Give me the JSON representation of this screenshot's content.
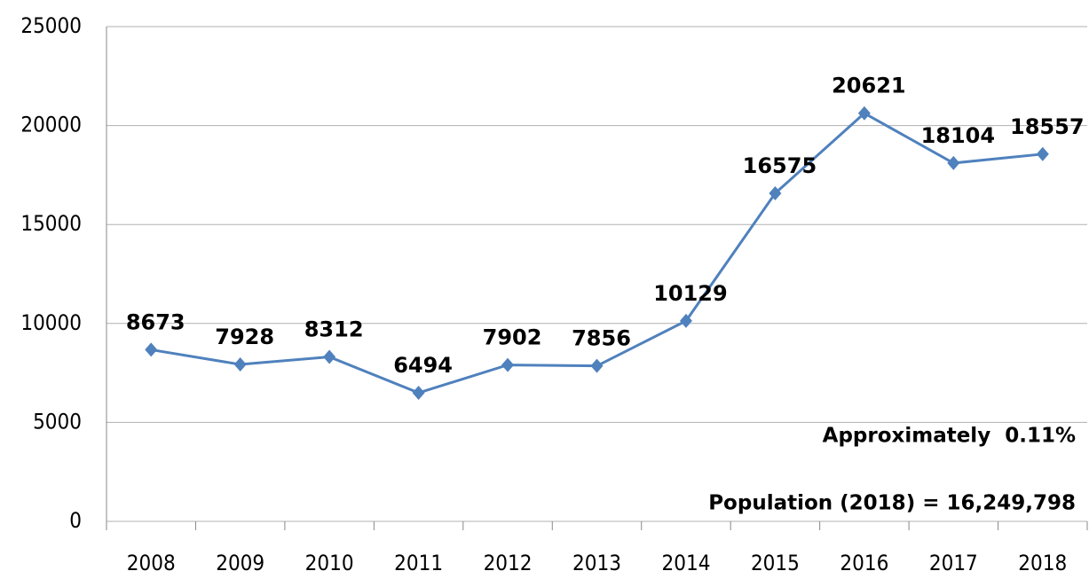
{
  "chart_data": {
    "type": "line",
    "categories": [
      "2008",
      "2009",
      "2010",
      "2011",
      "2012",
      "2013",
      "2014",
      "2015",
      "2016",
      "2017",
      "2018"
    ],
    "values": [
      8673,
      7928,
      8312,
      6494,
      7902,
      7856,
      10129,
      16575,
      20621,
      18104,
      18557
    ],
    "color": "#4f81bd",
    "ylim": [
      0,
      25000
    ],
    "yticks": [
      0,
      5000,
      10000,
      15000,
      20000,
      25000
    ],
    "grid": true,
    "annotations": [
      "Approximately  0.11%",
      "Population (2018) = 16,249,798"
    ]
  }
}
